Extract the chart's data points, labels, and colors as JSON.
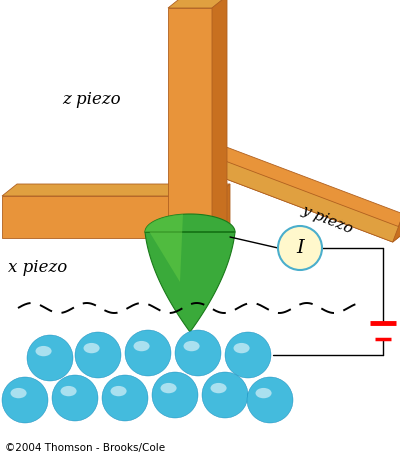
{
  "bg_color": "#ffffff",
  "orange_face": "#E8943A",
  "orange_light": "#F0B060",
  "orange_top": "#E0A040",
  "orange_side": "#C87020",
  "orange_dark": "#A05010",
  "orange_edge": "#B06020",
  "green_main": "#3AAA3A",
  "green_light": "#66CC44",
  "green_dark": "#1A7A1A",
  "blue_main": "#44BBDD",
  "blue_light": "#88DDFF",
  "blue_dark": "#1188BB",
  "label_z": "z piezo",
  "label_x": "x piezo",
  "label_y": "y piezo",
  "label_I": "I",
  "copyright": "©2004 Thomson - Brooks/Cole"
}
